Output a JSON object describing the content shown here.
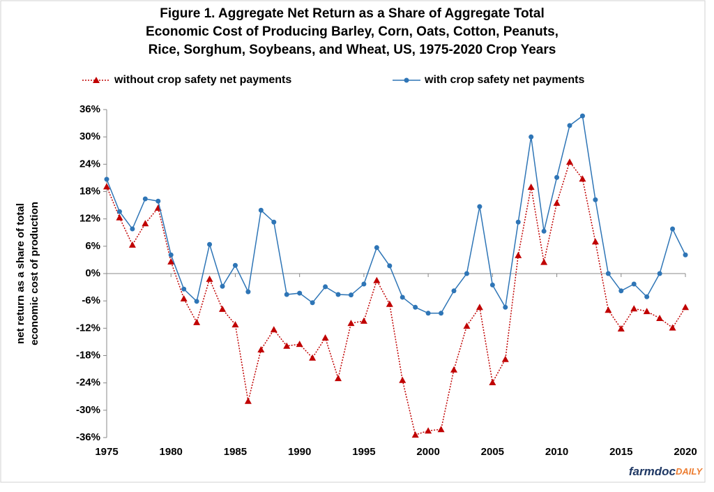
{
  "chart_data": {
    "type": "line",
    "title": [
      "Figure 1. Aggregate Net Return as a Share of Aggregate Total",
      "Economic Cost of Producing Barley, Corn, Oats, Cotton, Peanuts,",
      "Rice, Sorghum, Soybeans, and Wheat, US, 1975-2020 Crop Years"
    ],
    "y_label": [
      "net return as a share of total",
      "economic cost of production"
    ],
    "source": [
      "farmdoc",
      "DAILY"
    ],
    "x": [
      1975,
      1976,
      1977,
      1978,
      1979,
      1980,
      1981,
      1982,
      1983,
      1984,
      1985,
      1986,
      1987,
      1988,
      1989,
      1990,
      1991,
      1992,
      1993,
      1994,
      1995,
      1996,
      1997,
      1998,
      1999,
      2000,
      2001,
      2002,
      2003,
      2004,
      2005,
      2006,
      2007,
      2008,
      2009,
      2010,
      2011,
      2012,
      2013,
      2014,
      2015,
      2016,
      2017,
      2018,
      2019,
      2020
    ],
    "series": [
      {
        "name": "without crop safety net payments",
        "color": "#c00000",
        "marker": "triangle",
        "dash": "dotted",
        "values": [
          19.1,
          12.3,
          6.3,
          11.0,
          14.4,
          2.6,
          -5.5,
          -10.7,
          -1.2,
          -7.8,
          -11.2,
          -28.0,
          -16.7,
          -12.3,
          -15.9,
          -15.5,
          -18.5,
          -14.1,
          -23.0,
          -10.9,
          -10.4,
          -1.5,
          -6.7,
          -23.4,
          -35.4,
          -34.5,
          -34.2,
          -21.1,
          -11.5,
          -7.4,
          -23.9,
          -18.8,
          4.0,
          19.0,
          2.5,
          15.5,
          24.5,
          20.8,
          7.0,
          -8.0,
          -12.1,
          -7.7,
          -8.3,
          -9.8,
          -11.9,
          -7.4
        ]
      },
      {
        "name": "with crop safety net payments",
        "color": "#2e75b6",
        "marker": "circle",
        "dash": "solid",
        "values": [
          20.7,
          13.6,
          9.8,
          16.4,
          15.9,
          4.1,
          -3.4,
          -6.1,
          6.4,
          -2.8,
          1.8,
          -4.0,
          13.9,
          11.3,
          -4.6,
          -4.3,
          -6.4,
          -2.9,
          -4.6,
          -4.7,
          -2.3,
          5.7,
          1.7,
          -5.2,
          -7.4,
          -8.7,
          -8.7,
          -3.8,
          0,
          14.7,
          -2.5,
          -7.4,
          11.3,
          30.0,
          9.3,
          21.1,
          32.5,
          34.6,
          16.2,
          0,
          -3.8,
          -2.3,
          -5.1,
          0,
          9.8,
          4.1
        ]
      }
    ],
    "xlim": [
      1975,
      2020
    ],
    "xticks": [
      1975,
      1980,
      1985,
      1990,
      1995,
      2000,
      2005,
      2010,
      2015,
      2020
    ],
    "ylim": [
      -36,
      36
    ],
    "yticks": [
      {
        "value": 36,
        "label": "36%"
      },
      {
        "value": 30,
        "label": "30%"
      },
      {
        "value": 24,
        "label": "24%"
      },
      {
        "value": 18,
        "label": "18%"
      },
      {
        "value": 12,
        "label": "12%"
      },
      {
        "value": 6,
        "label": "6%"
      },
      {
        "value": 0,
        "label": "0%"
      },
      {
        "value": -6,
        "label": "-6%"
      },
      {
        "value": -12,
        "label": "-12%"
      },
      {
        "value": -18,
        "label": "-18%"
      },
      {
        "value": -24,
        "label": "-24%"
      },
      {
        "value": -30,
        "label": "-30%"
      },
      {
        "value": -36,
        "label": "-36%"
      }
    ],
    "grid": false
  }
}
